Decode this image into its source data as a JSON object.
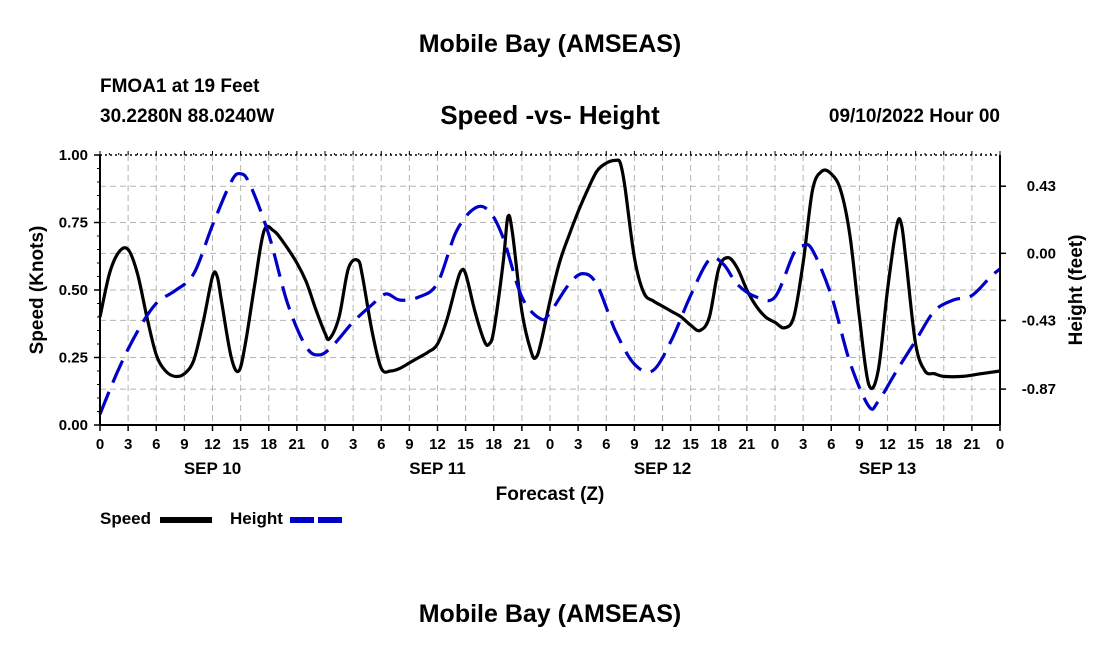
{
  "header": {
    "title": "Mobile Bay (AMSEAS)",
    "station": "FMOA1 at 19 Feet",
    "coords": "30.2280N  88.0240W",
    "datetime": "09/10/2022 Hour 00"
  },
  "footer": {
    "title": "Mobile Bay (AMSEAS)"
  },
  "chart_data": {
    "type": "line",
    "title": "Speed -vs- Height",
    "xlabel": "Forecast (Z)",
    "ylabel_left": "Speed (Knots)",
    "ylabel_right": "Height (feet)",
    "xlim": [
      0,
      96
    ],
    "ylim_left": [
      0,
      1
    ],
    "ylim_right": [
      -1.1,
      0.63
    ],
    "yticks_left": [
      "0.00",
      "0.25",
      "0.50",
      "0.75",
      "1.00"
    ],
    "yticks_left_values": [
      0,
      0.25,
      0.5,
      0.75,
      1.0
    ],
    "yticks_right": [
      "0.43",
      "0.00",
      "-0.43",
      "-0.87"
    ],
    "yticks_right_values": [
      0.43,
      0.0,
      -0.43,
      -0.87
    ],
    "xtick_labels": [
      "0",
      "3",
      "6",
      "9",
      "12",
      "15",
      "18",
      "21",
      "0",
      "3",
      "6",
      "9",
      "12",
      "15",
      "18",
      "21",
      "0",
      "3",
      "6",
      "9",
      "12",
      "15",
      "18",
      "21",
      "0",
      "3",
      "6",
      "9",
      "12",
      "15",
      "18",
      "21",
      "0"
    ],
    "day_labels": [
      {
        "label": "SEP 10",
        "hour": 12
      },
      {
        "label": "SEP 11",
        "hour": 36
      },
      {
        "label": "SEP 12",
        "hour": 60
      },
      {
        "label": "SEP 13",
        "hour": 84
      }
    ],
    "grid": true,
    "legend_position": "bottom-left",
    "series": [
      {
        "name": "Speed",
        "axis": "left",
        "color": "#000000",
        "style": "solid",
        "points": [
          [
            0,
            0.4
          ],
          [
            1,
            0.56
          ],
          [
            2,
            0.64
          ],
          [
            3,
            0.65
          ],
          [
            4,
            0.56
          ],
          [
            5,
            0.4
          ],
          [
            6,
            0.26
          ],
          [
            7,
            0.2
          ],
          [
            8,
            0.18
          ],
          [
            9,
            0.19
          ],
          [
            10,
            0.24
          ],
          [
            11,
            0.38
          ],
          [
            12,
            0.55
          ],
          [
            12.5,
            0.55
          ],
          [
            13,
            0.45
          ],
          [
            14,
            0.25
          ],
          [
            14.8,
            0.2
          ],
          [
            15.5,
            0.3
          ],
          [
            16.5,
            0.52
          ],
          [
            17.5,
            0.72
          ],
          [
            18.5,
            0.72
          ],
          [
            19.5,
            0.68
          ],
          [
            21,
            0.6
          ],
          [
            22,
            0.53
          ],
          [
            23,
            0.43
          ],
          [
            24,
            0.34
          ],
          [
            24.5,
            0.32
          ],
          [
            25.5,
            0.4
          ],
          [
            26.5,
            0.58
          ],
          [
            27.5,
            0.61
          ],
          [
            28,
            0.55
          ],
          [
            29,
            0.35
          ],
          [
            30,
            0.21
          ],
          [
            31,
            0.2
          ],
          [
            32,
            0.21
          ],
          [
            33,
            0.23
          ],
          [
            34,
            0.25
          ],
          [
            35,
            0.27
          ],
          [
            36,
            0.3
          ],
          [
            37,
            0.39
          ],
          [
            38,
            0.52
          ],
          [
            38.5,
            0.57
          ],
          [
            39,
            0.56
          ],
          [
            40,
            0.42
          ],
          [
            41,
            0.31
          ],
          [
            41.5,
            0.3
          ],
          [
            42,
            0.35
          ],
          [
            43,
            0.6
          ],
          [
            43.5,
            0.77
          ],
          [
            44,
            0.71
          ],
          [
            45,
            0.42
          ],
          [
            46,
            0.27
          ],
          [
            46.5,
            0.25
          ],
          [
            47,
            0.3
          ],
          [
            48,
            0.46
          ],
          [
            49,
            0.6
          ],
          [
            50,
            0.7
          ],
          [
            51,
            0.79
          ],
          [
            52,
            0.87
          ],
          [
            53,
            0.94
          ],
          [
            54,
            0.97
          ],
          [
            55,
            0.98
          ],
          [
            55.5,
            0.97
          ],
          [
            56,
            0.88
          ],
          [
            57,
            0.62
          ],
          [
            58,
            0.49
          ],
          [
            59,
            0.46
          ],
          [
            60,
            0.44
          ],
          [
            61,
            0.42
          ],
          [
            62,
            0.4
          ],
          [
            63,
            0.37
          ],
          [
            64,
            0.35
          ],
          [
            65,
            0.4
          ],
          [
            66,
            0.58
          ],
          [
            67,
            0.62
          ],
          [
            68,
            0.58
          ],
          [
            69,
            0.5
          ],
          [
            70,
            0.44
          ],
          [
            71,
            0.4
          ],
          [
            72,
            0.38
          ],
          [
            73,
            0.36
          ],
          [
            74,
            0.4
          ],
          [
            75,
            0.6
          ],
          [
            76,
            0.87
          ],
          [
            77,
            0.94
          ],
          [
            78,
            0.93
          ],
          [
            79,
            0.87
          ],
          [
            80,
            0.7
          ],
          [
            81,
            0.4
          ],
          [
            82,
            0.15
          ],
          [
            83,
            0.2
          ],
          [
            84,
            0.5
          ],
          [
            85,
            0.74
          ],
          [
            85.5,
            0.74
          ],
          [
            86,
            0.6
          ],
          [
            87,
            0.3
          ],
          [
            88,
            0.2
          ],
          [
            89,
            0.19
          ],
          [
            90,
            0.18
          ],
          [
            92,
            0.18
          ],
          [
            94,
            0.19
          ],
          [
            96,
            0.2
          ]
        ]
      },
      {
        "name": "Height",
        "axis": "right",
        "color": "#0000c8",
        "style": "dashed",
        "points": [
          [
            0,
            -1.03
          ],
          [
            2,
            -0.74
          ],
          [
            4,
            -0.5
          ],
          [
            6,
            -0.32
          ],
          [
            8,
            -0.24
          ],
          [
            10,
            -0.13
          ],
          [
            12,
            0.18
          ],
          [
            14,
            0.46
          ],
          [
            15,
            0.51
          ],
          [
            16,
            0.44
          ],
          [
            18,
            0.12
          ],
          [
            20,
            -0.32
          ],
          [
            22,
            -0.6
          ],
          [
            23.5,
            -0.65
          ],
          [
            25,
            -0.58
          ],
          [
            27,
            -0.44
          ],
          [
            29,
            -0.33
          ],
          [
            30.5,
            -0.26
          ],
          [
            32,
            -0.3
          ],
          [
            34,
            -0.28
          ],
          [
            36,
            -0.19
          ],
          [
            38,
            0.14
          ],
          [
            40,
            0.29
          ],
          [
            41.5,
            0.27
          ],
          [
            43,
            0.1
          ],
          [
            45,
            -0.28
          ],
          [
            47,
            -0.42
          ],
          [
            48,
            -0.38
          ],
          [
            50,
            -0.2
          ],
          [
            51.5,
            -0.13
          ],
          [
            53,
            -0.2
          ],
          [
            55,
            -0.5
          ],
          [
            57,
            -0.71
          ],
          [
            59,
            -0.75
          ],
          [
            61,
            -0.55
          ],
          [
            63,
            -0.27
          ],
          [
            65,
            -0.04
          ],
          [
            66.5,
            -0.07
          ],
          [
            68,
            -0.2
          ],
          [
            70,
            -0.28
          ],
          [
            72,
            -0.28
          ],
          [
            74,
            0.0
          ],
          [
            75,
            0.05
          ],
          [
            76,
            0.02
          ],
          [
            78,
            -0.27
          ],
          [
            80,
            -0.7
          ],
          [
            82,
            -0.98
          ],
          [
            83,
            -0.95
          ],
          [
            85,
            -0.75
          ],
          [
            87,
            -0.56
          ],
          [
            89,
            -0.37
          ],
          [
            91,
            -0.3
          ],
          [
            93,
            -0.27
          ],
          [
            95,
            -0.15
          ],
          [
            96,
            -0.1
          ]
        ]
      }
    ]
  }
}
